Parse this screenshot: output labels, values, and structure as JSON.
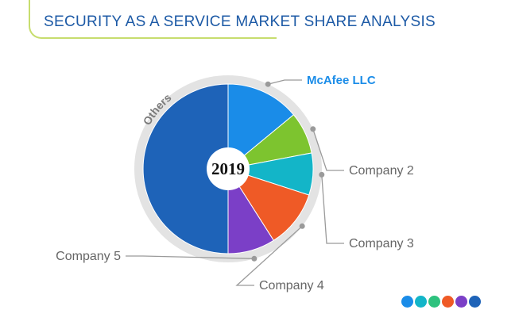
{
  "title": "SECURITY AS A SERVICE MARKET SHARE ANALYSIS",
  "chart_data": {
    "type": "pie",
    "center_label": "2019",
    "slices": [
      {
        "label": "McAfee LLC",
        "value": 14,
        "color": "#1a8ce8",
        "highlight": true
      },
      {
        "label": "Company 2",
        "value": 8,
        "color": "#7dc42f"
      },
      {
        "label": "Company 3",
        "value": 8,
        "color": "#13b5c8"
      },
      {
        "label": "Company 4",
        "value": 11,
        "color": "#ef5a26"
      },
      {
        "label": "Company 5",
        "value": 9,
        "color": "#7b3fc7"
      },
      {
        "label": "Others",
        "value": 50,
        "color": "#1e63b8"
      }
    ]
  },
  "colors": {
    "title": "#1d5aa6",
    "label": "#666666",
    "highlight_label": "#1a8ce8",
    "ring": "#e3e3e3",
    "leader": "#9a9a9a"
  },
  "footer_dots": [
    "#1a8ce8",
    "#13b5c8",
    "#2ec27e",
    "#ef5a26",
    "#7b3fc7",
    "#1e63b8"
  ]
}
